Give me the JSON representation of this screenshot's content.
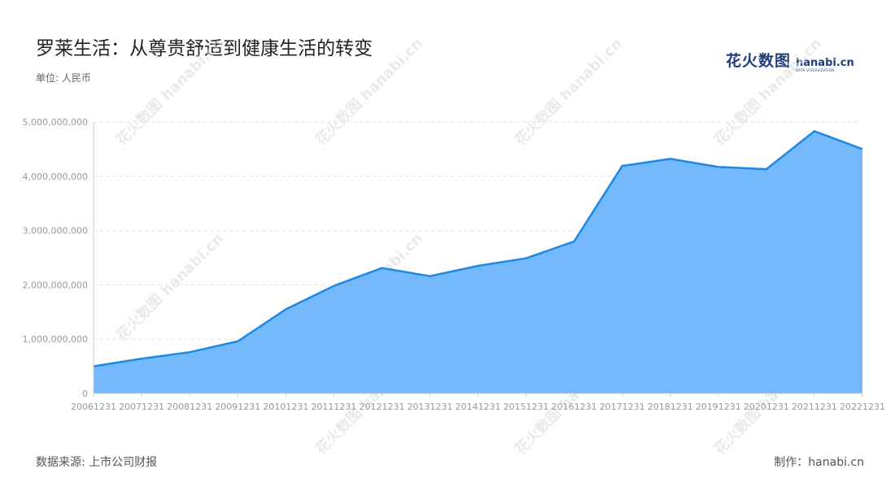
{
  "header": {
    "title": "罗莱生活：从尊贵舒适到健康生活的转变",
    "unit_label": "单位: 人民币"
  },
  "footer": {
    "source": "数据来源: 上市公司财报",
    "credit": "制作：hanabi.cn"
  },
  "logo": {
    "cn_text": "花火数图",
    "en_text": "hanabi.cn",
    "en_sub": "DATA VISUALIZATION"
  },
  "watermark": {
    "text": "花火数图 hanabi.cn"
  },
  "colors": {
    "line": "#1e88e5",
    "fill": "#74b9fb",
    "grid": "#e3e3e3",
    "axis_text": "#999999"
  },
  "chart_data": {
    "type": "area",
    "categories": [
      "20061231",
      "20071231",
      "20081231",
      "20091231",
      "20101231",
      "20111231",
      "20121231",
      "20131231",
      "20141231",
      "20151231",
      "20161231",
      "20171231",
      "20181231",
      "20191231",
      "20201231",
      "20211231",
      "20221231"
    ],
    "series": [
      {
        "values": [
          500000000,
          640000000,
          760000000,
          960000000,
          1550000000,
          1980000000,
          2310000000,
          2160000000,
          2350000000,
          2490000000,
          2800000000,
          4190000000,
          4320000000,
          4170000000,
          4130000000,
          4830000000,
          4500000000
        ]
      }
    ],
    "yticks": [
      "0",
      "1,000,000,000",
      "2,000,000,000",
      "3,000,000,000",
      "4,000,000,000",
      "5,000,000,000"
    ],
    "ylim": [
      0,
      5000000000
    ],
    "grid": true,
    "legend": "none"
  }
}
